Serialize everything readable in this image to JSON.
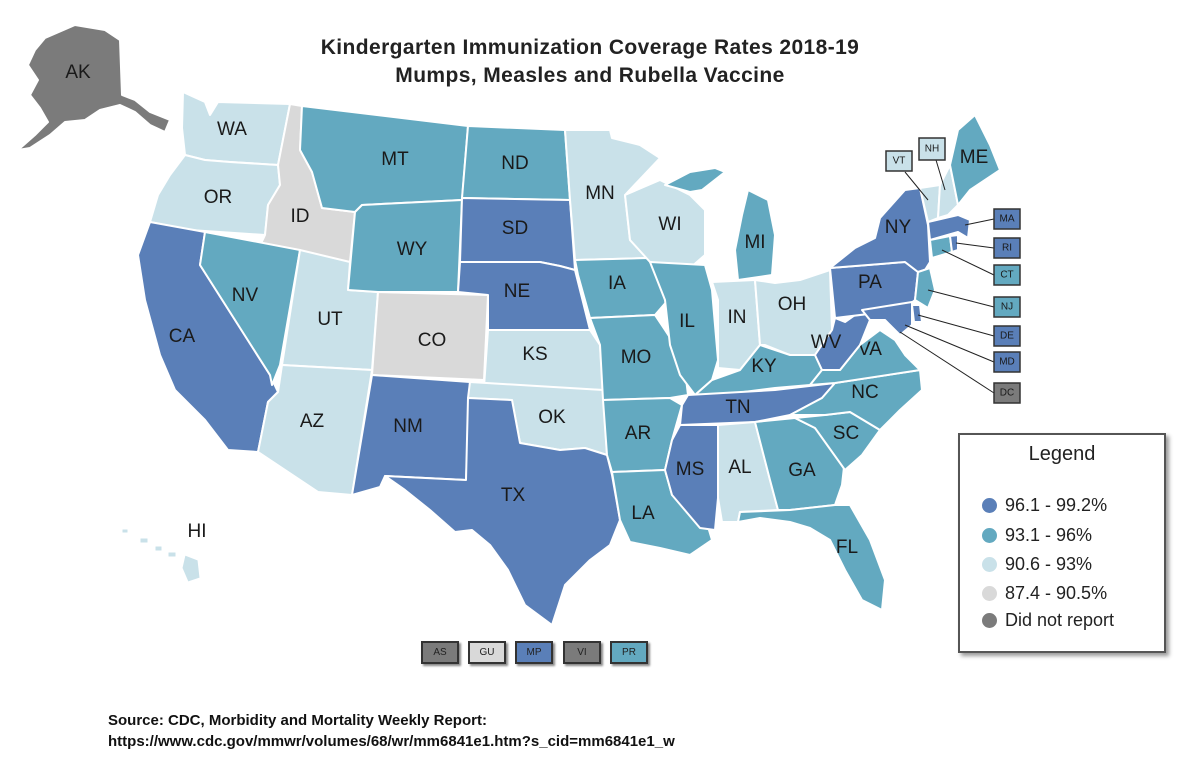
{
  "title": {
    "line1": "Kindergarten Immunization Coverage Rates 2018-19",
    "line2": "Mumps, Measles and Rubella Vaccine"
  },
  "colors": {
    "c1": "#5a7fb8",
    "c2": "#63a9c0",
    "c3": "#c9e1e9",
    "c4": "#d9d9d9",
    "c5": "#7b7b7b"
  },
  "states": {
    "AK": "AK",
    "WA": "WA",
    "OR": "OR",
    "CA": "CA",
    "ID": "ID",
    "NV": "NV",
    "UT": "UT",
    "AZ": "AZ",
    "MT": "MT",
    "WY": "WY",
    "CO": "CO",
    "NM": "NM",
    "ND": "ND",
    "SD": "SD",
    "NE": "NE",
    "KS": "KS",
    "OK": "OK",
    "TX": "TX",
    "MN": "MN",
    "IA": "IA",
    "MO": "MO",
    "AR": "AR",
    "LA": "LA",
    "WI": "WI",
    "IL": "IL",
    "MI": "MI",
    "IN": "IN",
    "OH": "OH",
    "KY": "KY",
    "TN": "TN",
    "MS": "MS",
    "AL": "AL",
    "GA": "GA",
    "FL": "FL",
    "SC": "SC",
    "NC": "NC",
    "VA": "VA",
    "WV": "WV",
    "PA": "PA",
    "NY": "NY",
    "ME": "ME",
    "HI": "HI"
  },
  "small_states": {
    "VT": "VT",
    "NH": "NH",
    "MA": "MA",
    "RI": "RI",
    "CT": "CT",
    "NJ": "NJ",
    "DE": "DE",
    "MD": "MD",
    "DC": "DC"
  },
  "territories": {
    "AS": "AS",
    "GU": "GU",
    "MP": "MP",
    "VI": "VI",
    "PR": "PR"
  },
  "legend": {
    "title": "Legend",
    "items": [
      {
        "label": "96.1 - 99.2%",
        "color": "#5a7fb8"
      },
      {
        "label": "93.1 - 96%",
        "color": "#63a9c0"
      },
      {
        "label": "90.6 - 93%",
        "color": "#c9e1e9"
      },
      {
        "label": "87.4 - 90.5%",
        "color": "#d9d9d9"
      },
      {
        "label": "Did not report",
        "color": "#7b7b7b"
      }
    ]
  },
  "source": {
    "line1": "Source: CDC, Morbidity and Mortality Weekly Report:",
    "line2": "https://www.cdc.gov/mmwr/volumes/68/wr/mm6841e1.htm?s_cid=mm6841e1_w"
  }
}
